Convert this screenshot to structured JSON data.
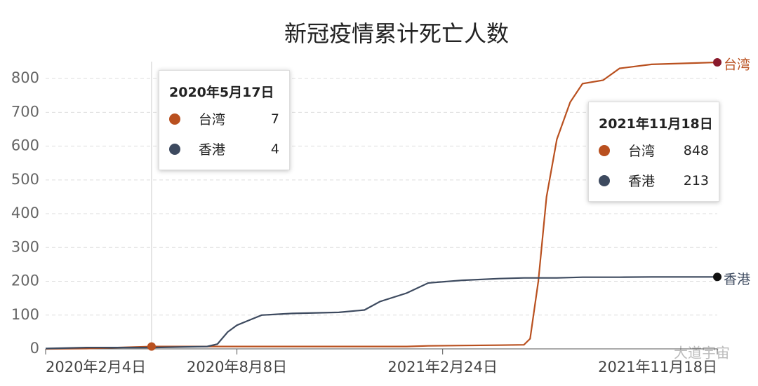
{
  "chart_data": {
    "type": "line",
    "title": "新冠疫情累计死亡人数",
    "x": [
      "2020-02-04",
      "2020-03-15",
      "2020-05-17",
      "2020-07-10",
      "2020-07-20",
      "2020-07-30",
      "2020-08-08",
      "2020-08-20",
      "2020-09-01",
      "2020-10-01",
      "2020-11-15",
      "2020-12-10",
      "2020-12-25",
      "2021-01-20",
      "2021-02-10",
      "2021-03-15",
      "2021-04-20",
      "2021-05-14",
      "2021-05-20",
      "2021-05-28",
      "2021-06-05",
      "2021-06-15",
      "2021-06-28",
      "2021-07-10",
      "2021-07-30",
      "2021-08-15",
      "2021-09-15",
      "2021-11-18"
    ],
    "series": [
      {
        "name": "台湾",
        "color": "#b9501f",
        "end_color": "#8a1a2c",
        "values": [
          0,
          1,
          7,
          7,
          7,
          7,
          7,
          7,
          7,
          7,
          7,
          7,
          7,
          7,
          9,
          10,
          11,
          12,
          30,
          200,
          450,
          620,
          730,
          785,
          795,
          830,
          842,
          848
        ]
      },
      {
        "name": "香港",
        "color": "#3d4a5f",
        "end_color": "#111111",
        "values": [
          1,
          4,
          4,
          7,
          14,
          50,
          70,
          85,
          100,
          105,
          108,
          115,
          140,
          165,
          195,
          203,
          208,
          210,
          210,
          210,
          210,
          210,
          211,
          212,
          212,
          212,
          213,
          213
        ]
      }
    ],
    "xlim": [
      "2020-02-04",
      "2021-11-18"
    ],
    "xticks": [
      {
        "value": "2020-02-04",
        "label": "2020年2月4日"
      },
      {
        "value": "2020-08-08",
        "label": "2020年8月8日"
      },
      {
        "value": "2021-02-24",
        "label": "2021年2月24日"
      },
      {
        "value": "2021-11-18",
        "label": "2021年11月18日"
      }
    ],
    "ylim": [
      0,
      850
    ],
    "yticks": [
      0,
      100,
      200,
      300,
      400,
      500,
      600,
      700,
      800
    ],
    "grid": true,
    "tooltips": [
      {
        "date": "2020年5月17日",
        "items": [
          {
            "name": "台湾",
            "value": 7
          },
          {
            "name": "香港",
            "value": 4
          }
        ]
      },
      {
        "date": "2021年11月18日",
        "items": [
          {
            "name": "台湾",
            "value": 848
          },
          {
            "name": "香港",
            "value": 213
          }
        ]
      }
    ],
    "watermark": "大道宇宙"
  }
}
